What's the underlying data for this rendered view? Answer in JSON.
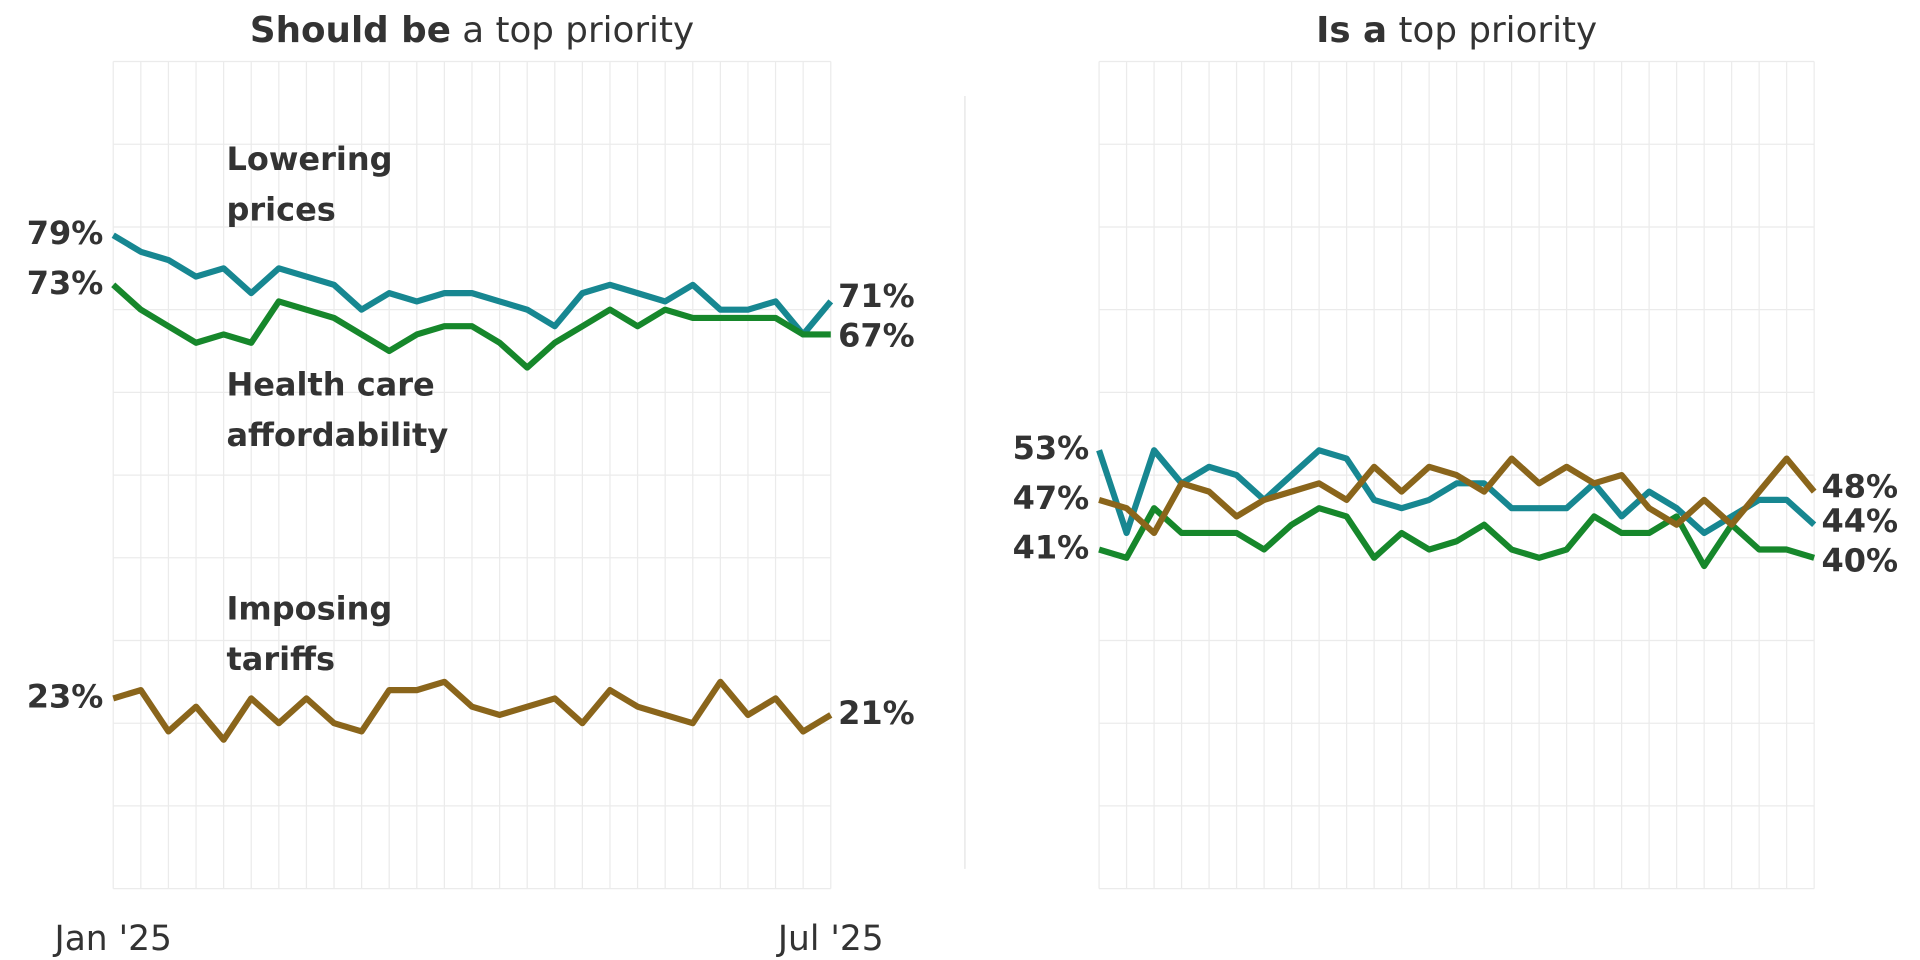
{
  "chart_data": [
    {
      "type": "line",
      "title_bold": "Should be",
      "title": "a top priority",
      "categories": [
        "Jan '25",
        null,
        null,
        null,
        null,
        null,
        null,
        null,
        null,
        null,
        null,
        null,
        null,
        null,
        null,
        null,
        null,
        null,
        null,
        null,
        null,
        null,
        null,
        null,
        null,
        null,
        "Jul '25"
      ],
      "ylim": [
        0,
        100
      ],
      "yticks": [
        0,
        10,
        20,
        30,
        40,
        50,
        60,
        70,
        80,
        90,
        100
      ],
      "grid": true,
      "series": [
        {
          "name": [
            "Lowering",
            "prices"
          ],
          "color": "#178791",
          "values": [
            79,
            77,
            76,
            74,
            75,
            72,
            75,
            74,
            73,
            70,
            72,
            71,
            72,
            72,
            71,
            70,
            68,
            72,
            73,
            72,
            71,
            73,
            70,
            70,
            71,
            67,
            71
          ],
          "value_labels": [
            "79%",
            null,
            null,
            null,
            null,
            null,
            null,
            null,
            null,
            null,
            null,
            null,
            null,
            null,
            null,
            null,
            null,
            null,
            null,
            null,
            null,
            null,
            null,
            null,
            null,
            null,
            "71%"
          ]
        },
        {
          "name": [
            "Health care",
            "affordability"
          ],
          "color": "#16872b",
          "values": [
            73,
            70,
            68,
            66,
            67,
            66,
            71,
            70,
            69,
            67,
            65,
            67,
            68,
            68,
            66,
            63,
            66,
            68,
            70,
            68,
            70,
            69,
            69,
            69,
            69,
            67,
            67
          ],
          "value_labels": [
            "73%",
            null,
            null,
            null,
            null,
            null,
            null,
            null,
            null,
            null,
            null,
            null,
            null,
            null,
            null,
            null,
            null,
            null,
            null,
            null,
            null,
            null,
            null,
            null,
            null,
            null,
            "67%"
          ]
        },
        {
          "name": [
            "Imposing",
            "tariffs"
          ],
          "color": "#8a651b",
          "values": [
            23,
            24,
            19,
            22,
            18,
            23,
            20,
            23,
            20,
            19,
            24,
            24,
            25,
            22,
            21,
            22,
            23,
            20,
            24,
            22,
            21,
            20,
            25,
            21,
            23,
            19,
            21
          ],
          "value_labels": [
            "23%",
            null,
            null,
            null,
            null,
            null,
            null,
            null,
            null,
            null,
            null,
            null,
            null,
            null,
            null,
            null,
            null,
            null,
            null,
            null,
            null,
            null,
            null,
            null,
            null,
            null,
            "21%"
          ]
        }
      ]
    },
    {
      "type": "line",
      "title_bold": "Is a",
      "title": "top priority",
      "categories": [
        null,
        null,
        null,
        null,
        null,
        null,
        null,
        null,
        null,
        null,
        null,
        null,
        null,
        null,
        null,
        null,
        null,
        null,
        null,
        null,
        null,
        null,
        null,
        null,
        null,
        null,
        null
      ],
      "ylim": [
        0,
        100
      ],
      "yticks": [
        0,
        10,
        20,
        30,
        40,
        50,
        60,
        70,
        80,
        90,
        100
      ],
      "grid": true,
      "series": [
        {
          "color": "#178791",
          "values": [
            53,
            43,
            53,
            49,
            51,
            50,
            47,
            50,
            53,
            52,
            47,
            46,
            47,
            49,
            49,
            46,
            46,
            46,
            49,
            45,
            48,
            46,
            43,
            45,
            47,
            47,
            44
          ],
          "value_labels": [
            "53%",
            null,
            null,
            null,
            null,
            null,
            null,
            null,
            null,
            null,
            null,
            null,
            null,
            null,
            null,
            null,
            null,
            null,
            null,
            null,
            null,
            null,
            null,
            null,
            null,
            null,
            "44%"
          ]
        },
        {
          "color": "#16872b",
          "values": [
            41,
            40,
            46,
            43,
            43,
            43,
            41,
            44,
            46,
            45,
            40,
            43,
            41,
            42,
            44,
            41,
            40,
            41,
            45,
            43,
            43,
            45,
            39,
            44,
            41,
            41,
            40
          ],
          "value_labels": [
            "41%",
            null,
            null,
            null,
            null,
            null,
            null,
            null,
            null,
            null,
            null,
            null,
            null,
            null,
            null,
            null,
            null,
            null,
            null,
            null,
            null,
            null,
            null,
            null,
            null,
            null,
            "40%"
          ]
        },
        {
          "color": "#8a651b",
          "values": [
            47,
            46,
            43,
            49,
            48,
            45,
            47,
            48,
            49,
            47,
            51,
            48,
            51,
            50,
            48,
            52,
            49,
            51,
            49,
            50,
            46,
            44,
            47,
            44,
            48,
            52,
            48
          ],
          "value_labels": [
            "47%",
            null,
            null,
            null,
            null,
            null,
            null,
            null,
            null,
            null,
            null,
            null,
            null,
            null,
            null,
            null,
            null,
            null,
            null,
            null,
            null,
            null,
            null,
            null,
            null,
            null,
            "48%"
          ]
        }
      ]
    }
  ]
}
